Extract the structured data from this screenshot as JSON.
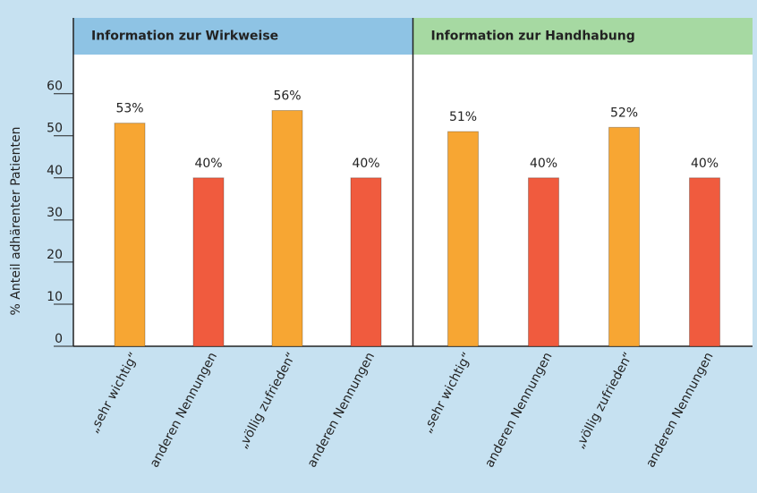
{
  "chart_data": {
    "type": "bar",
    "y_label": "% Anteil adhärenter Patienten",
    "groups": [
      {
        "label": "Information zur Wirkweise",
        "color": "#8ec3e4"
      },
      {
        "label": "Information zur Handhabung",
        "color": "#a6d9a2"
      }
    ],
    "categories": [
      "„sehr wichtig“",
      "anderen Nennungen",
      "„völlig zufrieden“",
      "anderen Nennungen",
      "„sehr wichtig“",
      "anderen Nennungen",
      "„völlig zufrieden“",
      "anderen Nennungen"
    ],
    "values": [
      53,
      40,
      56,
      40,
      51,
      40,
      52,
      40
    ],
    "value_labels": [
      "53%",
      "40%",
      "56%",
      "40%",
      "51%",
      "40%",
      "52%",
      "40%"
    ],
    "colors": [
      "#f7a633",
      "#f05b3e",
      "#f7a633",
      "#f05b3e",
      "#f7a633",
      "#f05b3e",
      "#f7a633",
      "#f05b3e"
    ],
    "ylim": [
      0,
      78
    ],
    "yticks": [
      0,
      10,
      20,
      30,
      40,
      50,
      60
    ],
    "grid": false
  }
}
